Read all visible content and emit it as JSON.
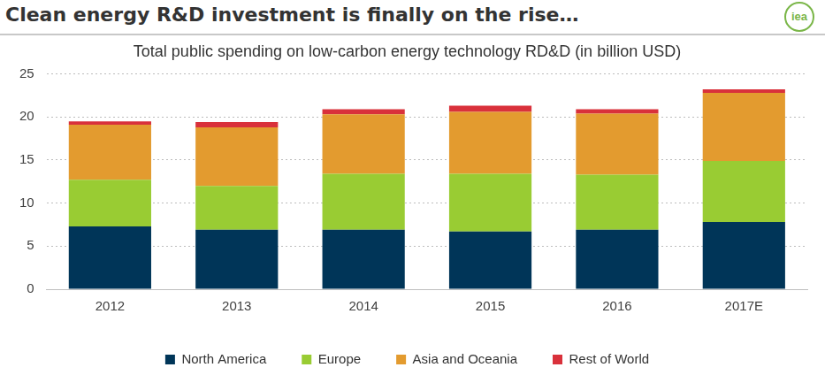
{
  "header": {
    "title": "Clean energy R&D investment is finally on the rise…",
    "logo": "iea"
  },
  "chart_data": {
    "type": "bar",
    "stacked": true,
    "title": "Total public spending on low-carbon energy technology RD&D (in billion USD)",
    "categories": [
      "2012",
      "2013",
      "2014",
      "2015",
      "2016",
      "2017E"
    ],
    "series": [
      {
        "name": "North America",
        "color": "#003558",
        "values": [
          7.3,
          6.9,
          6.9,
          6.7,
          6.9,
          7.8
        ]
      },
      {
        "name": "Europe",
        "color": "#99cc33",
        "values": [
          5.4,
          5.1,
          6.5,
          6.7,
          6.4,
          7.1
        ]
      },
      {
        "name": "Asia and Oceania",
        "color": "#e39b2f",
        "values": [
          6.4,
          6.8,
          6.9,
          7.2,
          7.1,
          7.9
        ]
      },
      {
        "name": "Rest of World",
        "color": "#d9313b",
        "values": [
          0.4,
          0.6,
          0.6,
          0.7,
          0.5,
          0.4
        ]
      }
    ],
    "ylim": [
      0,
      25
    ],
    "yticks": [
      0,
      5,
      10,
      15,
      20,
      25
    ],
    "grid": true,
    "legend": "bottom"
  }
}
